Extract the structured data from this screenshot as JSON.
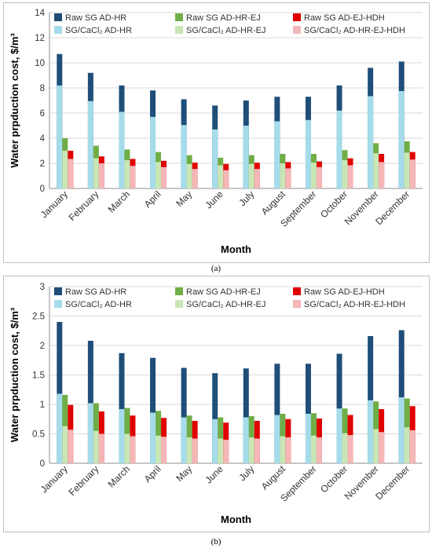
{
  "captions": {
    "a": "(a)",
    "b": "(b)"
  },
  "colors": {
    "raw_hr": "#1f4e79",
    "raw_ej": "#70ad47",
    "raw_hdh": "#e00000",
    "sg_hr": "#a5dcea",
    "sg_ej": "#c9e6b6",
    "sg_hdh": "#f4b6b6"
  },
  "chart_data": [
    {
      "type": "bar",
      "panel": "a",
      "categories": [
        "January",
        "February",
        "March",
        "April",
        "May",
        "June",
        "July",
        "August",
        "September",
        "October",
        "November",
        "December"
      ],
      "xlabel": "Month",
      "ylabel": "Water prpduction cost, $/m³",
      "ylim": [
        0,
        14
      ],
      "yticks": [
        0,
        2,
        4,
        6,
        8,
        10,
        12,
        14
      ],
      "grid": true,
      "legend_position": "top",
      "series": [
        {
          "name": "Raw SG AD-HR",
          "values": [
            10.7,
            9.2,
            8.2,
            7.8,
            7.1,
            6.6,
            7.0,
            7.3,
            7.3,
            8.2,
            9.6,
            10.1
          ]
        },
        {
          "name": "Raw SG AD-HR-EJ",
          "values": [
            4.0,
            3.4,
            3.1,
            2.9,
            2.65,
            2.45,
            2.65,
            2.75,
            2.75,
            3.05,
            3.6,
            3.75
          ]
        },
        {
          "name": "Raw SG AD-EJ-HDH",
          "values": [
            3.0,
            2.55,
            2.35,
            2.2,
            2.05,
            1.95,
            2.05,
            2.1,
            2.15,
            2.4,
            2.75,
            2.9
          ]
        },
        {
          "name": "SG/CaCl₂ AD-HR",
          "values": [
            8.2,
            6.95,
            6.1,
            5.7,
            5.05,
            4.7,
            5.0,
            5.35,
            5.45,
            6.2,
            7.35,
            7.75
          ]
        },
        {
          "name": "SG/CaCl₂ AD-HR-EJ",
          "values": [
            3.0,
            2.4,
            2.25,
            2.1,
            1.95,
            1.85,
            1.95,
            2.0,
            2.05,
            2.25,
            2.8,
            2.85
          ]
        },
        {
          "name": "SG/CaCl₂ AD-HR-EJ-HDH",
          "values": [
            2.35,
            2.0,
            1.8,
            1.7,
            1.55,
            1.45,
            1.55,
            1.6,
            1.7,
            1.85,
            2.1,
            2.3
          ]
        }
      ]
    },
    {
      "type": "bar",
      "panel": "b",
      "categories": [
        "January",
        "February",
        "March",
        "April",
        "May",
        "June",
        "July",
        "August",
        "September",
        "October",
        "November",
        "December"
      ],
      "xlabel": "Month",
      "ylabel": "Water prpduction cost, $/m³",
      "ylim": [
        0,
        3
      ],
      "yticks": [
        0,
        0.5,
        1,
        1.5,
        2,
        2.5,
        3
      ],
      "grid": true,
      "legend_position": "top",
      "series": [
        {
          "name": "Raw SG AD-HR",
          "values": [
            2.4,
            2.08,
            1.87,
            1.79,
            1.62,
            1.53,
            1.61,
            1.69,
            1.69,
            1.86,
            2.16,
            2.26
          ]
        },
        {
          "name": "Raw SG AD-HR-EJ",
          "values": [
            1.16,
            1.02,
            0.94,
            0.89,
            0.81,
            0.78,
            0.8,
            0.84,
            0.85,
            0.93,
            1.05,
            1.1
          ]
        },
        {
          "name": "Raw SG AD-EJ-HDH",
          "values": [
            0.99,
            0.88,
            0.81,
            0.77,
            0.72,
            0.69,
            0.72,
            0.75,
            0.76,
            0.82,
            0.92,
            0.97
          ]
        },
        {
          "name": "SG/CaCl₂ AD-HR",
          "values": [
            1.18,
            1.02,
            0.92,
            0.86,
            0.78,
            0.75,
            0.78,
            0.82,
            0.84,
            0.93,
            1.07,
            1.12
          ]
        },
        {
          "name": "SG/CaCl₂ AD-HR-EJ",
          "values": [
            0.63,
            0.55,
            0.5,
            0.47,
            0.44,
            0.42,
            0.44,
            0.46,
            0.47,
            0.51,
            0.58,
            0.61
          ]
        },
        {
          "name": "SG/CaCl₂ AD-HR-EJ-HDH",
          "values": [
            0.57,
            0.5,
            0.46,
            0.45,
            0.42,
            0.4,
            0.42,
            0.44,
            0.44,
            0.48,
            0.53,
            0.56
          ]
        }
      ]
    }
  ]
}
